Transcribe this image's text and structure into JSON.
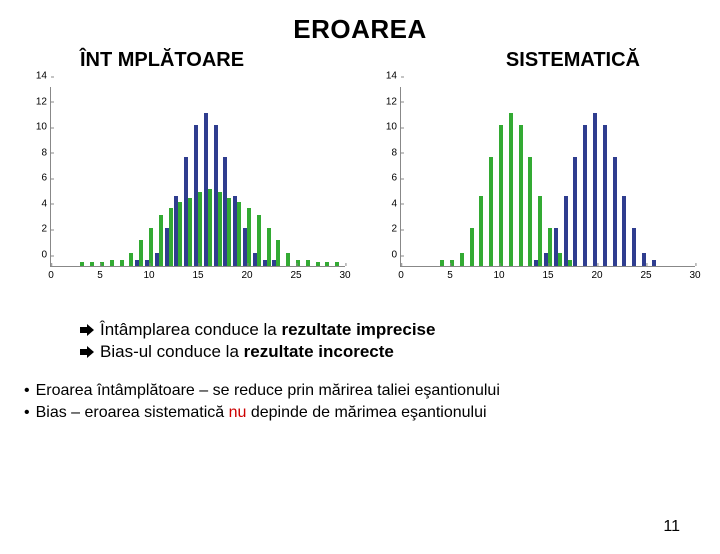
{
  "title": "EROAREA",
  "subtitle_left": "ÎNT MPLĂTOARE",
  "subtitle_right": "SISTEMATICĂ",
  "colors": {
    "series_a": "#2f3d8f",
    "series_b": "#33aa33",
    "axis": "#888888",
    "text": "#000000",
    "background": "#ffffff",
    "nu": "#cc0000"
  },
  "chart_left": {
    "type": "bar",
    "ymax": 14,
    "yticks": [
      0,
      2,
      4,
      6,
      8,
      10,
      12,
      14
    ],
    "xticks": [
      0,
      5,
      10,
      15,
      20,
      25,
      30
    ],
    "xmax": 30,
    "series_a": [
      {
        "x": 9,
        "y": 0.5
      },
      {
        "x": 10,
        "y": 0.5
      },
      {
        "x": 11,
        "y": 1
      },
      {
        "x": 12,
        "y": 3
      },
      {
        "x": 13,
        "y": 5.5
      },
      {
        "x": 14,
        "y": 8.5
      },
      {
        "x": 15,
        "y": 11
      },
      {
        "x": 16,
        "y": 12
      },
      {
        "x": 17,
        "y": 11
      },
      {
        "x": 18,
        "y": 8.5
      },
      {
        "x": 19,
        "y": 5.5
      },
      {
        "x": 20,
        "y": 3
      },
      {
        "x": 21,
        "y": 1
      },
      {
        "x": 22,
        "y": 0.5
      },
      {
        "x": 23,
        "y": 0.5
      }
    ],
    "series_b": [
      {
        "x": 3,
        "y": 0.3
      },
      {
        "x": 4,
        "y": 0.3
      },
      {
        "x": 5,
        "y": 0.3
      },
      {
        "x": 6,
        "y": 0.5
      },
      {
        "x": 7,
        "y": 0.5
      },
      {
        "x": 8,
        "y": 1
      },
      {
        "x": 9,
        "y": 2
      },
      {
        "x": 10,
        "y": 3
      },
      {
        "x": 11,
        "y": 4
      },
      {
        "x": 12,
        "y": 4.5
      },
      {
        "x": 13,
        "y": 5
      },
      {
        "x": 14,
        "y": 5.3
      },
      {
        "x": 15,
        "y": 5.8
      },
      {
        "x": 16,
        "y": 6
      },
      {
        "x": 17,
        "y": 5.8
      },
      {
        "x": 18,
        "y": 5.3
      },
      {
        "x": 19,
        "y": 5
      },
      {
        "x": 20,
        "y": 4.5
      },
      {
        "x": 21,
        "y": 4
      },
      {
        "x": 22,
        "y": 3
      },
      {
        "x": 23,
        "y": 2
      },
      {
        "x": 24,
        "y": 1
      },
      {
        "x": 25,
        "y": 0.5
      },
      {
        "x": 26,
        "y": 0.5
      },
      {
        "x": 27,
        "y": 0.3
      },
      {
        "x": 28,
        "y": 0.3
      },
      {
        "x": 29,
        "y": 0.3
      }
    ]
  },
  "chart_right": {
    "type": "bar",
    "ymax": 14,
    "yticks": [
      0,
      2,
      4,
      6,
      8,
      10,
      12,
      14
    ],
    "xticks": [
      0,
      5,
      10,
      15,
      20,
      25,
      30
    ],
    "xmax": 30,
    "series_a": [
      {
        "x": 14,
        "y": 0.5
      },
      {
        "x": 15,
        "y": 1
      },
      {
        "x": 16,
        "y": 3
      },
      {
        "x": 17,
        "y": 5.5
      },
      {
        "x": 18,
        "y": 8.5
      },
      {
        "x": 19,
        "y": 11
      },
      {
        "x": 20,
        "y": 12
      },
      {
        "x": 21,
        "y": 11
      },
      {
        "x": 22,
        "y": 8.5
      },
      {
        "x": 23,
        "y": 5.5
      },
      {
        "x": 24,
        "y": 3
      },
      {
        "x": 25,
        "y": 1
      },
      {
        "x": 26,
        "y": 0.5
      }
    ],
    "series_b": [
      {
        "x": 4,
        "y": 0.5
      },
      {
        "x": 5,
        "y": 0.5
      },
      {
        "x": 6,
        "y": 1
      },
      {
        "x": 7,
        "y": 3
      },
      {
        "x": 8,
        "y": 5.5
      },
      {
        "x": 9,
        "y": 8.5
      },
      {
        "x": 10,
        "y": 11
      },
      {
        "x": 11,
        "y": 12
      },
      {
        "x": 12,
        "y": 11
      },
      {
        "x": 13,
        "y": 8.5
      },
      {
        "x": 14,
        "y": 5.5
      },
      {
        "x": 15,
        "y": 3
      },
      {
        "x": 16,
        "y": 1
      },
      {
        "x": 17,
        "y": 0.5
      }
    ]
  },
  "bullet1_a": "Întâmplarea conduce la ",
  "bullet1_b": "rezultate imprecise",
  "bullet2_a": "Bias-ul conduce la ",
  "bullet2_b": "rezultate incorecte",
  "body1": "Eroarea întâmplătoare – se reduce prin mărirea taliei eşantionului",
  "body2_a": "Bias – eroarea sistematică ",
  "body2_nu": "nu",
  "body2_b": " depinde de mărimea eşantionului",
  "page_number": "11"
}
